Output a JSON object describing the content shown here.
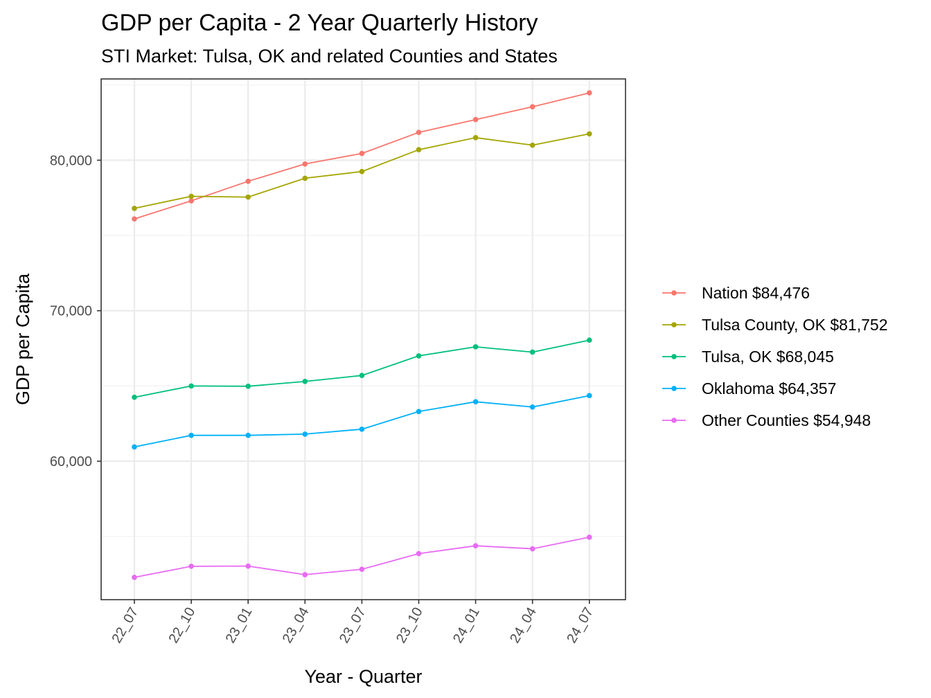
{
  "chart_data": {
    "type": "line",
    "title": "GDP per Capita - 2 Year Quarterly History",
    "subtitle": "STI Market: Tulsa, OK and related Counties and States",
    "xlabel": "Year - Quarter",
    "ylabel": "GDP per Capita",
    "categories": [
      "22_07",
      "22_10",
      "23_01",
      "23_04",
      "23_07",
      "23_10",
      "24_01",
      "24_04",
      "24_07"
    ],
    "ylim": [
      50800,
      85400
    ],
    "yticks": [
      60000,
      70000,
      80000
    ],
    "ytick_labels": [
      "60,000",
      "70,000",
      "80,000"
    ],
    "grid": true,
    "legend_position": "right",
    "series": [
      {
        "name": "Nation $84,476",
        "color": "#F8766D",
        "values": [
          76100,
          77300,
          78600,
          79750,
          80450,
          81850,
          82700,
          83550,
          84476
        ]
      },
      {
        "name": "Tulsa County, OK $81,752",
        "color": "#A3A500",
        "values": [
          76800,
          77600,
          77550,
          78800,
          79250,
          80700,
          81500,
          81000,
          81752
        ]
      },
      {
        "name": "Tulsa, OK $68,045",
        "color": "#00BF7D",
        "values": [
          64250,
          65000,
          64980,
          65300,
          65700,
          67000,
          67600,
          67250,
          68045
        ]
      },
      {
        "name": "Oklahoma $64,357",
        "color": "#00B0F6",
        "values": [
          60950,
          61720,
          61720,
          61800,
          62130,
          63300,
          63950,
          63600,
          64357
        ]
      },
      {
        "name": "Other Counties $54,948",
        "color": "#E76BF3",
        "values": [
          52280,
          53020,
          53030,
          52460,
          52820,
          53860,
          54380,
          54180,
          54948
        ]
      }
    ]
  }
}
